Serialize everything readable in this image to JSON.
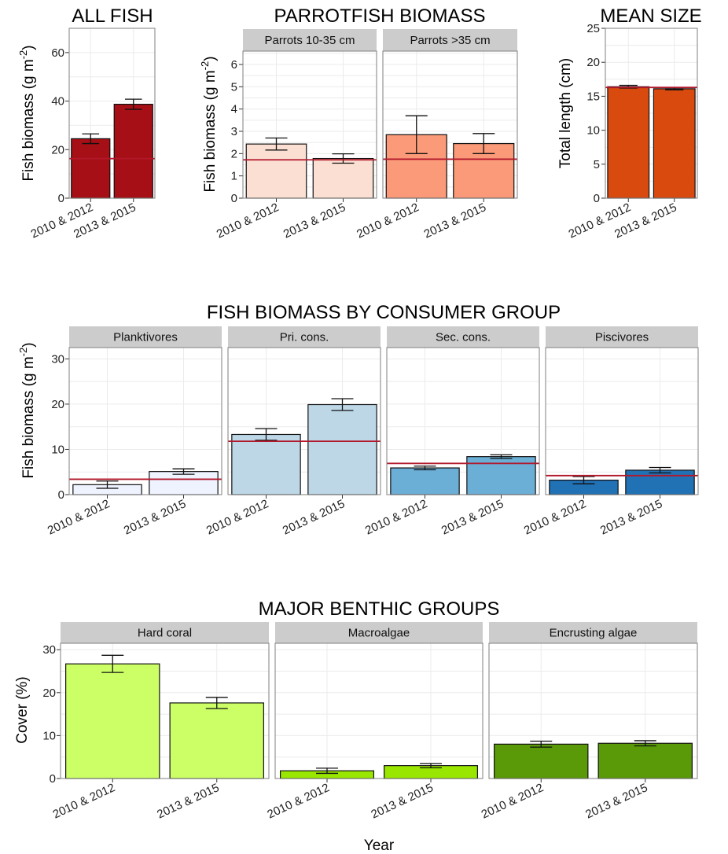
{
  "chart_data": [
    {
      "type": "bar",
      "title": "ALL FISH",
      "ylabel": "Fish biomass (g m^-2)",
      "ylim": [
        0,
        70
      ],
      "yticks": [
        0,
        20,
        40,
        60
      ],
      "categories": [
        "2010 & 2012",
        "2013 & 2015"
      ],
      "colors": [
        "#a50f15"
      ],
      "panels": [
        {
          "name": "",
          "values": [
            24.5,
            38.7
          ],
          "errors": [
            2.0,
            2.1
          ],
          "reference": 16.3
        }
      ]
    },
    {
      "type": "bar",
      "title": "PARROTFISH BIOMASS",
      "ylabel": "Fish biomass (g m^-2)",
      "ylim": [
        0,
        6.6
      ],
      "yticks": [
        0,
        1,
        2,
        3,
        4,
        5,
        6
      ],
      "categories": [
        "2010 & 2012",
        "2013 & 2015"
      ],
      "colors": [
        "#fcdfd3",
        "#fb9a78"
      ],
      "panels": [
        {
          "name": "Parrots 10-35 cm",
          "values": [
            2.43,
            1.78
          ],
          "errors": [
            0.27,
            0.21
          ],
          "reference": 1.72
        },
        {
          "name": "Parrots >35 cm",
          "values": [
            2.85,
            2.45
          ],
          "errors": [
            0.85,
            0.45
          ],
          "reference": 1.75
        }
      ]
    },
    {
      "type": "bar",
      "title": "MEAN SIZE",
      "ylabel": "Total length (cm)",
      "ylim": [
        0,
        25
      ],
      "yticks": [
        0,
        5,
        10,
        15,
        20,
        25
      ],
      "categories": [
        "2010 & 2012",
        "2013 & 2015"
      ],
      "colors": [
        "#d94a0f"
      ],
      "panels": [
        {
          "name": "",
          "values": [
            16.4,
            16.1
          ],
          "errors": [
            0.2,
            0.15
          ],
          "reference": 16.3
        }
      ]
    },
    {
      "type": "bar",
      "title": "FISH BIOMASS BY CONSUMER GROUP",
      "ylabel": "Fish biomass (g m^-2)",
      "ylim": [
        0,
        32.5
      ],
      "yticks": [
        0,
        10,
        20,
        30
      ],
      "categories": [
        "2010 & 2012",
        "2013 & 2015"
      ],
      "colors": [
        "#eff3ff",
        "#bdd7e7",
        "#6baed6",
        "#2171b5"
      ],
      "panels": [
        {
          "name": "Planktivores",
          "values": [
            2.2,
            5.1
          ],
          "errors": [
            0.8,
            0.6
          ],
          "reference": 3.4
        },
        {
          "name": "Pri. cons.",
          "values": [
            13.3,
            19.9
          ],
          "errors": [
            1.3,
            1.3
          ],
          "reference": 11.8
        },
        {
          "name": "Sec. cons.",
          "values": [
            5.9,
            8.4
          ],
          "errors": [
            0.4,
            0.4
          ],
          "reference": 6.9
        },
        {
          "name": "Piscivores",
          "values": [
            3.2,
            5.4
          ],
          "errors": [
            0.8,
            0.6
          ],
          "reference": 4.2
        }
      ]
    },
    {
      "type": "bar",
      "title": "MAJOR BENTHIC GROUPS",
      "ylabel": "Cover (%)",
      "xlabel": "Year",
      "ylim": [
        0,
        31.5
      ],
      "yticks": [
        0,
        10,
        20,
        30
      ],
      "categories": [
        "2010 & 2012",
        "2013 & 2015"
      ],
      "colors": [
        "#ccff66",
        "#99e600",
        "#5a9a08"
      ],
      "panels": [
        {
          "name": "Hard coral",
          "values": [
            26.7,
            17.6
          ],
          "errors": [
            2.0,
            1.3
          ]
        },
        {
          "name": "Macroalgae",
          "values": [
            1.8,
            3.0
          ],
          "errors": [
            0.6,
            0.5
          ]
        },
        {
          "name": "Encrusting algae",
          "values": [
            8.0,
            8.2
          ],
          "errors": [
            0.7,
            0.6
          ]
        }
      ]
    }
  ]
}
